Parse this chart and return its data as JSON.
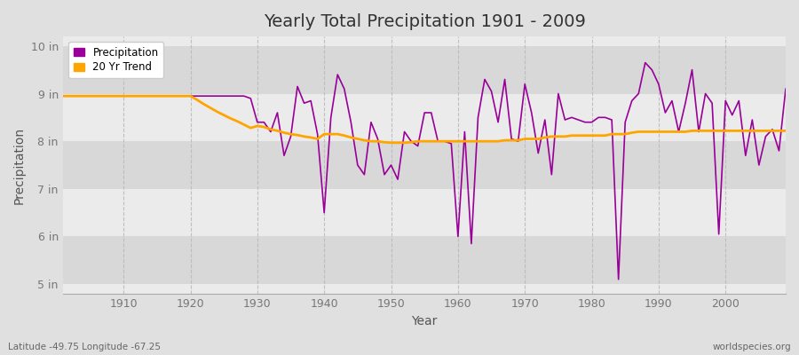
{
  "title": "Yearly Total Precipitation 1901 - 2009",
  "xlabel": "Year",
  "ylabel": "Precipitation",
  "xlim": [
    1901,
    2009
  ],
  "ylim": [
    4.8,
    10.2
  ],
  "yticks": [
    5,
    6,
    7,
    8,
    9,
    10
  ],
  "ytick_labels": [
    "5 in",
    "6 in",
    "7 in",
    "8 in",
    "9 in",
    "10 in"
  ],
  "xticks": [
    1910,
    1920,
    1930,
    1940,
    1950,
    1960,
    1970,
    1980,
    1990,
    2000
  ],
  "bg_outer": "#e0e0e0",
  "bg_inner_light": "#ebebeb",
  "bg_inner_dark": "#d8d8d8",
  "precip_color": "#990099",
  "trend_color": "#ffa500",
  "subtitle_left": "Latitude -49.75 Longitude -67.25",
  "subtitle_right": "worldspecies.org",
  "years": [
    1901,
    1902,
    1903,
    1904,
    1905,
    1906,
    1907,
    1908,
    1909,
    1910,
    1911,
    1912,
    1913,
    1914,
    1915,
    1916,
    1917,
    1918,
    1919,
    1920,
    1921,
    1922,
    1923,
    1924,
    1925,
    1926,
    1927,
    1928,
    1929,
    1930,
    1931,
    1932,
    1933,
    1934,
    1935,
    1936,
    1937,
    1938,
    1939,
    1940,
    1941,
    1942,
    1943,
    1944,
    1945,
    1946,
    1947,
    1948,
    1949,
    1950,
    1951,
    1952,
    1953,
    1954,
    1955,
    1956,
    1957,
    1958,
    1959,
    1960,
    1961,
    1962,
    1963,
    1964,
    1965,
    1966,
    1967,
    1968,
    1969,
    1970,
    1971,
    1972,
    1973,
    1974,
    1975,
    1976,
    1977,
    1978,
    1979,
    1980,
    1981,
    1982,
    1983,
    1984,
    1985,
    1986,
    1987,
    1988,
    1989,
    1990,
    1991,
    1992,
    1993,
    1994,
    1995,
    1996,
    1997,
    1998,
    1999,
    2000,
    2001,
    2002,
    2003,
    2004,
    2005,
    2006,
    2007,
    2008,
    2009
  ],
  "precip": [
    8.95,
    8.95,
    8.95,
    8.95,
    8.95,
    8.95,
    8.95,
    8.95,
    8.95,
    8.95,
    8.95,
    8.95,
    8.95,
    8.95,
    8.95,
    8.95,
    8.95,
    8.95,
    8.95,
    8.95,
    8.95,
    8.95,
    8.95,
    8.95,
    8.95,
    8.95,
    8.95,
    8.95,
    8.9,
    8.4,
    8.4,
    8.2,
    8.6,
    7.7,
    8.1,
    9.15,
    8.8,
    8.85,
    8.15,
    6.5,
    8.5,
    9.4,
    9.1,
    8.4,
    7.5,
    7.3,
    8.4,
    8.05,
    7.3,
    7.5,
    7.2,
    8.2,
    8.0,
    7.9,
    8.6,
    8.6,
    8.0,
    8.0,
    7.95,
    6.0,
    8.2,
    5.85,
    8.5,
    9.3,
    9.05,
    8.4,
    9.3,
    8.05,
    8.0,
    9.2,
    8.6,
    7.75,
    8.45,
    7.3,
    9.0,
    8.45,
    8.5,
    8.45,
    8.4,
    8.4,
    8.5,
    8.5,
    8.45,
    5.1,
    8.4,
    8.85,
    9.0,
    9.65,
    9.5,
    9.2,
    8.6,
    8.85,
    8.2,
    8.8,
    9.5,
    8.2,
    9.0,
    8.8,
    6.05,
    8.85,
    8.55,
    8.85,
    7.7,
    8.45,
    7.5,
    8.1,
    8.25,
    7.8,
    9.1
  ],
  "trend": [
    8.95,
    8.95,
    8.95,
    8.95,
    8.95,
    8.95,
    8.95,
    8.95,
    8.95,
    8.95,
    8.95,
    8.95,
    8.95,
    8.95,
    8.95,
    8.95,
    8.95,
    8.95,
    8.95,
    8.95,
    8.87,
    8.78,
    8.7,
    8.62,
    8.55,
    8.48,
    8.42,
    8.35,
    8.28,
    8.32,
    8.3,
    8.25,
    8.22,
    8.18,
    8.15,
    8.13,
    8.1,
    8.08,
    8.05,
    8.15,
    8.15,
    8.15,
    8.12,
    8.08,
    8.05,
    8.02,
    8.0,
    8.0,
    7.98,
    7.97,
    7.97,
    7.97,
    7.98,
    8.0,
    8.0,
    8.0,
    8.0,
    8.0,
    8.0,
    8.0,
    8.0,
    8.0,
    8.0,
    8.0,
    8.0,
    8.0,
    8.02,
    8.02,
    8.02,
    8.05,
    8.05,
    8.05,
    8.08,
    8.1,
    8.1,
    8.1,
    8.12,
    8.12,
    8.12,
    8.12,
    8.12,
    8.12,
    8.15,
    8.15,
    8.15,
    8.18,
    8.2,
    8.2,
    8.2,
    8.2,
    8.2,
    8.2,
    8.2,
    8.2,
    8.22,
    8.22,
    8.22,
    8.22,
    8.22,
    8.22,
    8.22,
    8.22,
    8.22,
    8.22,
    8.22,
    8.22,
    8.22,
    8.22,
    8.22
  ]
}
